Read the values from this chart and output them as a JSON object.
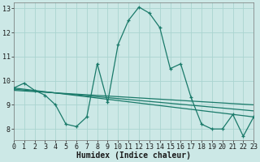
{
  "xlabel": "Humidex (Indice chaleur)",
  "background_color": "#cce8e6",
  "grid_color": "#aad4d0",
  "line_color": "#1a7a6a",
  "x_min": 0,
  "x_max": 23,
  "y_min": 7.55,
  "y_max": 13.25,
  "yticks": [
    8,
    9,
    10,
    11,
    12,
    13
  ],
  "xticks": [
    0,
    1,
    2,
    3,
    4,
    5,
    6,
    7,
    8,
    9,
    10,
    11,
    12,
    13,
    14,
    15,
    16,
    17,
    18,
    19,
    20,
    21,
    22,
    23
  ],
  "main_x": [
    0,
    1,
    2,
    3,
    4,
    5,
    6,
    7,
    8,
    9,
    10,
    11,
    12,
    13,
    14,
    15,
    16,
    17,
    18,
    19,
    20,
    21,
    22,
    23
  ],
  "main_y": [
    9.7,
    9.9,
    9.6,
    9.4,
    9.0,
    8.2,
    8.1,
    8.5,
    10.7,
    9.1,
    11.5,
    12.5,
    13.05,
    12.8,
    12.2,
    10.5,
    10.7,
    9.3,
    8.2,
    8.0,
    8.0,
    8.6,
    7.7,
    8.5
  ],
  "reg_lines": [
    {
      "x": [
        0,
        23
      ],
      "y": [
        9.7,
        8.5
      ]
    },
    {
      "x": [
        0,
        23
      ],
      "y": [
        9.65,
        8.75
      ]
    },
    {
      "x": [
        0,
        23
      ],
      "y": [
        9.6,
        9.0
      ]
    }
  ],
  "xlabel_fontsize": 7,
  "tick_fontsize": 6
}
